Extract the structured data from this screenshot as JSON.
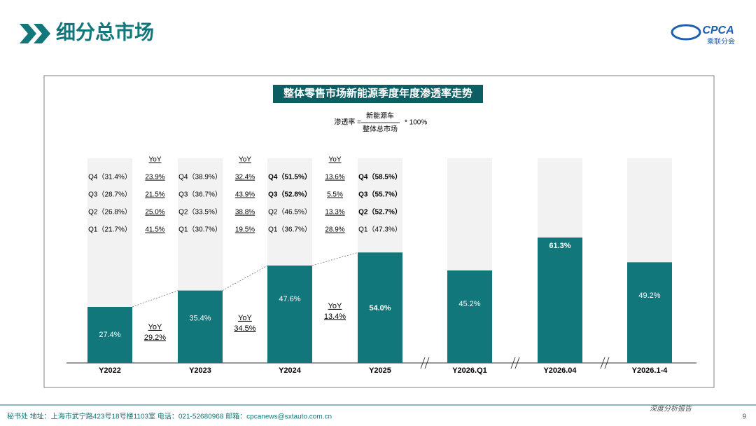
{
  "header": {
    "title": "细分总市场",
    "logo": "CPCA",
    "logo_sub": "乘联分会"
  },
  "chart_data": {
    "type": "bar",
    "title": "整体零售市场新能源季度年度渗透率走势",
    "formula": {
      "lhs": "渗透率 =",
      "numerator": "新能源车",
      "denominator": "整体总市场",
      "rhs": "* 100%"
    },
    "categories": [
      "Y2022",
      "Y2023",
      "Y2024",
      "Y2025",
      "Y2026.Q1",
      "Y2026.04",
      "Y2026.1-4"
    ],
    "values": [
      27.4,
      35.4,
      47.6,
      54.0,
      45.2,
      61.3,
      49.2
    ],
    "value_labels": [
      "27.4%",
      "35.4%",
      "47.6%",
      "54.0%",
      "45.2%",
      "61.3%",
      "49.2%"
    ],
    "bold_values": [
      false,
      false,
      false,
      true,
      false,
      true,
      false
    ],
    "ylim": [
      0,
      100
    ],
    "color": "#12777a",
    "background_color": "#f2f2f2",
    "quarters": [
      {
        "items": [
          {
            "label": "Q4（31.4%）",
            "bold": false
          },
          {
            "label": "Q3（28.7%）",
            "bold": false
          },
          {
            "label": "Q2（26.8%）",
            "bold": false
          },
          {
            "label": "Q1（21.7%）",
            "bold": false
          }
        ],
        "yoy_header": "YoY",
        "yoy": [
          "23.9%",
          "21.5%",
          "25.0%",
          "41.5%"
        ]
      },
      {
        "items": [
          {
            "label": "Q4（38.9%）",
            "bold": false
          },
          {
            "label": "Q3（36.7%）",
            "bold": false
          },
          {
            "label": "Q2（33.5%）",
            "bold": false
          },
          {
            "label": "Q1（30.7%）",
            "bold": false
          }
        ],
        "yoy_header": "YoY",
        "yoy": [
          "32.4%",
          "43.9%",
          "38.8%",
          "19.5%"
        ]
      },
      {
        "items": [
          {
            "label": "Q4（51.5%）",
            "bold": true
          },
          {
            "label": "Q3（52.8%）",
            "bold": true
          },
          {
            "label": "Q2（46.5%）",
            "bold": false
          },
          {
            "label": "Q1（36.7%）",
            "bold": false
          }
        ],
        "yoy_header": "YoY",
        "yoy": [
          "13.6%",
          "5.5%",
          "13.3%",
          "28.9%"
        ]
      },
      {
        "items": [
          {
            "label": "Q4（58.5%）",
            "bold": true
          },
          {
            "label": "Q3（55.7%）",
            "bold": true
          },
          {
            "label": "Q2（52.7%）",
            "bold": true
          },
          {
            "label": "Q1（47.3%）",
            "bold": false
          }
        ]
      }
    ],
    "growth": [
      {
        "label": "YoY",
        "value": "29.2%"
      },
      {
        "label": "YoY",
        "value": "34.5%"
      },
      {
        "label": "YoY",
        "value": "13.4%"
      }
    ]
  },
  "footer": {
    "address": "秘书处   地址：上海市武宁路423号18号楼1103室  电话：021-52680968   邮箱：cpcanews@sxtauto.com.cn",
    "report": "深度分析报告",
    "page": "9"
  }
}
